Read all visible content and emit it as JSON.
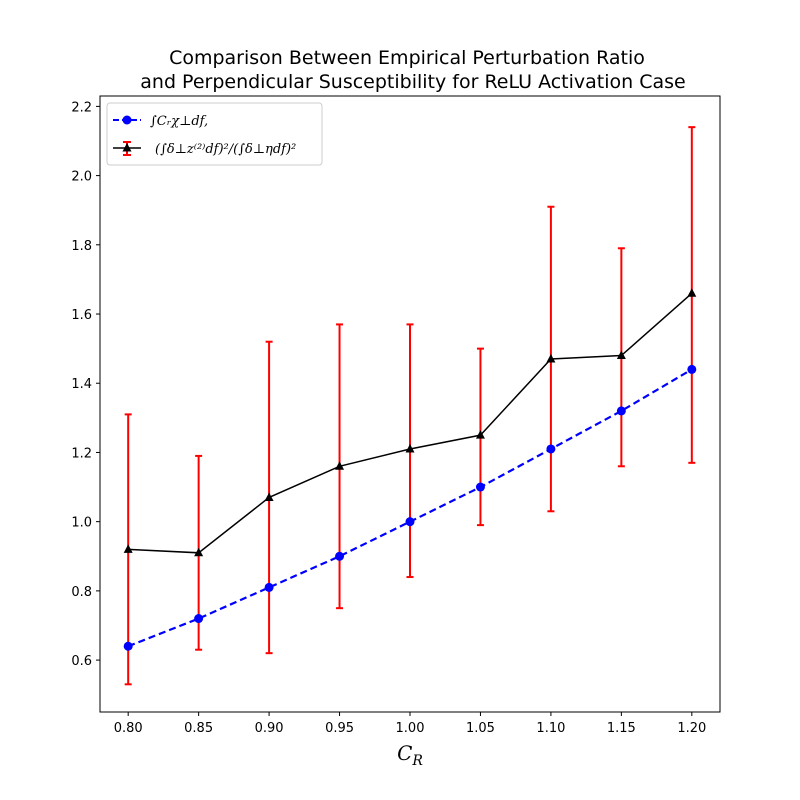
{
  "chart_data": {
    "type": "line",
    "title_lines": [
      "Comparison Between Empirical Perturbation Ratio",
      "and Perpendicular Susceptibility for ReLU Activation Case"
    ],
    "xlabel": "C_R",
    "xlabel_main": "C",
    "xlabel_sub": "R",
    "ylabel": "",
    "x": [
      0.8,
      0.85,
      0.9,
      0.95,
      1.0,
      1.05,
      1.1,
      1.15,
      1.2
    ],
    "xlim": [
      0.78,
      1.22
    ],
    "ylim": [
      0.45,
      2.23
    ],
    "xticks": [
      0.8,
      0.85,
      0.9,
      0.95,
      1.0,
      1.05,
      1.1,
      1.15,
      1.2
    ],
    "xtick_labels": [
      "0.80",
      "0.85",
      "0.90",
      "0.95",
      "1.00",
      "1.05",
      "1.10",
      "1.15",
      "1.20"
    ],
    "yticks": [
      0.6,
      0.8,
      1.0,
      1.2,
      1.4,
      1.6,
      1.8,
      2.0,
      2.2
    ],
    "ytick_labels": [
      "0.6",
      "0.8",
      "1.0",
      "1.2",
      "1.4",
      "1.6",
      "1.8",
      "2.0",
      "2.2"
    ],
    "grid": false,
    "legend_position": "upper-left",
    "series": [
      {
        "name": "∫C_R χ_⊥ df,",
        "legend_label": "∫Cᵣχ⊥df,",
        "color": "#0000ff",
        "linestyle": "dashed",
        "marker": "circle",
        "values": [
          0.64,
          0.72,
          0.81,
          0.9,
          1.0,
          1.1,
          1.21,
          1.32,
          1.44
        ]
      },
      {
        "name": "(∫δ_⊥ z^(2) df)^2 / (∫δ_⊥ η df)^2",
        "legend_label": "(∫δ⊥z⁽²⁾df)²/(∫δ⊥ηdf)²",
        "color": "#000000",
        "linestyle": "solid",
        "marker": "triangle",
        "values": [
          0.92,
          0.91,
          1.07,
          1.16,
          1.21,
          1.25,
          1.47,
          1.48,
          1.66
        ],
        "error_color": "#ff0000",
        "error_lower": [
          0.53,
          0.63,
          0.62,
          0.75,
          0.84,
          0.99,
          1.03,
          1.16,
          1.17
        ],
        "error_upper": [
          1.31,
          1.19,
          1.52,
          1.57,
          1.57,
          1.5,
          1.91,
          1.79,
          2.14
        ]
      }
    ]
  }
}
